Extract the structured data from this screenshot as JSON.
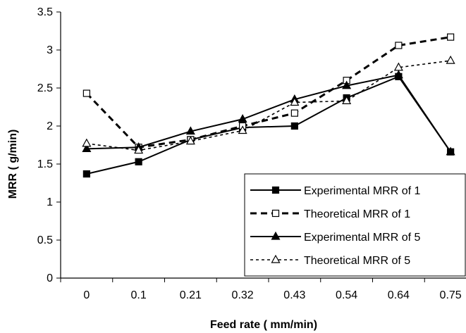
{
  "chart_data": {
    "type": "line",
    "title": "",
    "xlabel": "Feed rate ( mm/min)",
    "ylabel": "MRR ( g/min)",
    "categories": [
      "0",
      "0.1",
      "0.21",
      "0.32",
      "0.43",
      "0.54",
      "0.64",
      "0.75"
    ],
    "ylim": [
      0,
      3.5
    ],
    "yticks": [
      "0",
      "0.5",
      "1",
      "1.5",
      "2",
      "2.5",
      "3",
      "3.5"
    ],
    "grid": false,
    "legend_position": "bottom-right",
    "series": [
      {
        "name": "Experimental MRR of 1",
        "line": "solid",
        "marker": "filled-square",
        "values": [
          1.37,
          1.53,
          1.82,
          1.98,
          2.0,
          2.37,
          2.65,
          1.66
        ]
      },
      {
        "name": "Theoretical MRR of 1",
        "line": "dashed",
        "marker": "open-square",
        "values": [
          2.43,
          1.72,
          1.82,
          2.0,
          2.17,
          2.6,
          3.06,
          3.17
        ]
      },
      {
        "name": "Experimental MRR of 5",
        "line": "solid",
        "marker": "filled-triangle",
        "values": [
          1.7,
          1.72,
          1.93,
          2.09,
          2.35,
          2.53,
          2.67,
          1.66
        ]
      },
      {
        "name": "Theoretical MRR of 5",
        "line": "dotted",
        "marker": "open-triangle",
        "values": [
          1.77,
          1.68,
          1.8,
          1.94,
          2.31,
          2.33,
          2.77,
          2.86
        ]
      }
    ]
  }
}
